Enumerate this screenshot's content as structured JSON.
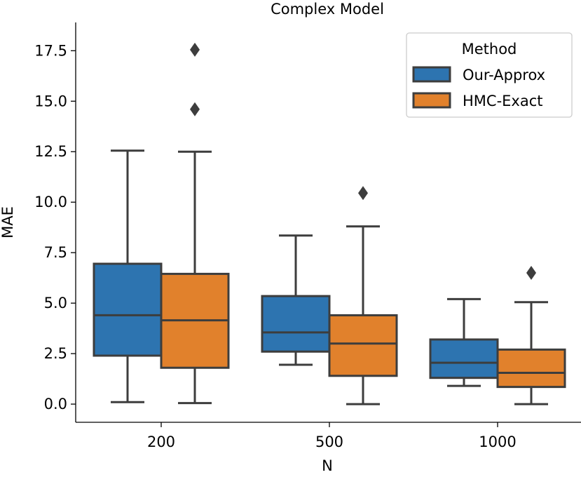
{
  "chart_data": {
    "type": "box",
    "title": "Complex Model",
    "xlabel": "N",
    "ylabel": "MAE",
    "categories": [
      "200",
      "500",
      "1000"
    ],
    "ylim": [
      -0.9,
      18.9
    ],
    "yticks": [
      0.0,
      2.5,
      5.0,
      7.5,
      10.0,
      12.5,
      15.0,
      17.5
    ],
    "ytick_labels": [
      "0.0",
      "2.5",
      "5.0",
      "7.5",
      "10.0",
      "12.5",
      "15.0",
      "17.5"
    ],
    "legend": {
      "title": "Method",
      "placement": "top-right"
    },
    "series": [
      {
        "name": "Our-Approx",
        "color": "#2d74b0",
        "boxes": [
          {
            "min": 0.1,
            "q1": 2.4,
            "median": 4.4,
            "q3": 6.95,
            "max": 12.55,
            "outliers": []
          },
          {
            "min": 1.95,
            "q1": 2.6,
            "median": 3.55,
            "q3": 5.35,
            "max": 8.35,
            "outliers": []
          },
          {
            "min": 0.9,
            "q1": 1.3,
            "median": 2.05,
            "q3": 3.2,
            "max": 5.2,
            "outliers": []
          }
        ]
      },
      {
        "name": "HMC-Exact",
        "color": "#e1812c",
        "boxes": [
          {
            "min": 0.05,
            "q1": 1.8,
            "median": 4.15,
            "q3": 6.45,
            "max": 12.5,
            "outliers": [
              14.6,
              17.55
            ]
          },
          {
            "min": 0.0,
            "q1": 1.4,
            "median": 3.0,
            "q3": 4.4,
            "max": 8.8,
            "outliers": [
              10.45
            ]
          },
          {
            "min": 0.0,
            "q1": 0.85,
            "median": 1.55,
            "q3": 2.7,
            "max": 5.05,
            "outliers": [
              6.5
            ]
          }
        ]
      }
    ]
  }
}
